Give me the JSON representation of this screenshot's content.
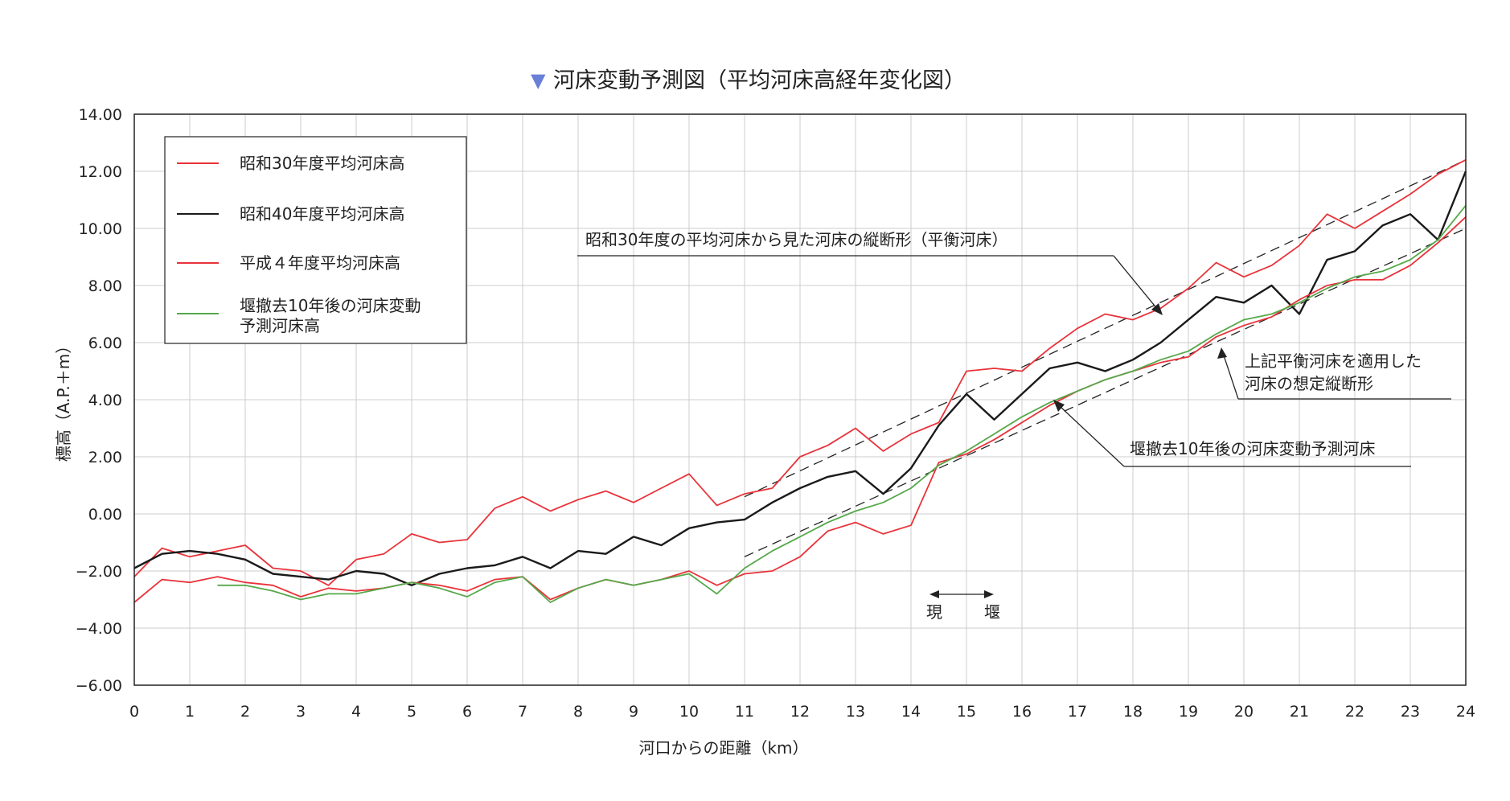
{
  "chart_data": {
    "type": "line",
    "title": "河床変動予測図（平均河床高経年変化図）",
    "title_marker": "▼",
    "xlabel": "河口からの距離（km）",
    "ylabel": "標高（A.P.＋m）",
    "xlim": [
      0,
      24
    ],
    "ylim": [
      -6,
      14
    ],
    "x_ticks": [
      "0",
      "1",
      "2",
      "3",
      "4",
      "5",
      "6",
      "7",
      "8",
      "9",
      "10",
      "11",
      "12",
      "13",
      "14",
      "15",
      "16",
      "17",
      "18",
      "19",
      "20",
      "21",
      "22",
      "23",
      "24"
    ],
    "y_ticks": [
      "14.00",
      "12.00",
      "10.00",
      "8.00",
      "6.00",
      "4.00",
      "2.00",
      "0.00",
      "−2.00",
      "−4.00",
      "−6.00"
    ],
    "grid": true,
    "legend_position": "top-left",
    "colors": {
      "red": "#e8333a",
      "black": "#1a1a1a",
      "green": "#55a84a",
      "grid": "#cccccc"
    },
    "series": [
      {
        "name": "昭和30年度平均河床高",
        "color": "#e8333a",
        "x": [
          0,
          0.5,
          1,
          1.5,
          2,
          2.5,
          3,
          3.5,
          4,
          4.5,
          5,
          5.5,
          6,
          6.5,
          7,
          7.5,
          8,
          8.5,
          9,
          9.5,
          10,
          10.5,
          11,
          11.5,
          12,
          12.5,
          13,
          13.5,
          14,
          14.5,
          15,
          15.5,
          16,
          16.5,
          17,
          17.5,
          18,
          18.5,
          19,
          19.5,
          20,
          20.5,
          21,
          21.5,
          22,
          22.5,
          23,
          23.5,
          24
        ],
        "values": [
          -2.2,
          -1.2,
          -1.5,
          -1.3,
          -1.1,
          -1.9,
          -2.0,
          -2.5,
          -1.6,
          -1.4,
          -0.7,
          -1.0,
          -0.9,
          0.2,
          0.6,
          0.1,
          0.5,
          0.8,
          0.4,
          0.9,
          1.4,
          0.3,
          0.7,
          0.9,
          2.0,
          2.4,
          3.0,
          2.2,
          2.8,
          3.2,
          5.0,
          5.1,
          5.0,
          5.8,
          6.5,
          7.0,
          6.8,
          7.2,
          7.9,
          8.8,
          8.3,
          8.7,
          9.4,
          10.5,
          10.0,
          10.6,
          11.2,
          11.9,
          12.4
        ]
      },
      {
        "name": "昭和40年度平均河床高",
        "color": "#1a1a1a",
        "x": [
          0,
          0.5,
          1,
          1.5,
          2,
          2.5,
          3,
          3.5,
          4,
          4.5,
          5,
          5.5,
          6,
          6.5,
          7,
          7.5,
          8,
          8.5,
          9,
          9.5,
          10,
          10.5,
          11,
          11.5,
          12,
          12.5,
          13,
          13.5,
          14,
          14.5,
          15,
          15.5,
          16,
          16.5,
          17,
          17.5,
          18,
          18.5,
          19,
          19.5,
          20,
          20.5,
          21,
          21.5,
          22,
          22.5,
          23,
          23.5,
          24
        ],
        "values": [
          -1.9,
          -1.4,
          -1.3,
          -1.4,
          -1.6,
          -2.1,
          -2.2,
          -2.3,
          -2.0,
          -2.1,
          -2.5,
          -2.1,
          -1.9,
          -1.8,
          -1.5,
          -1.9,
          -1.3,
          -1.4,
          -0.8,
          -1.1,
          -0.5,
          -0.3,
          -0.2,
          0.4,
          0.9,
          1.3,
          1.5,
          0.7,
          1.6,
          3.1,
          4.2,
          3.3,
          4.2,
          5.1,
          5.3,
          5.0,
          5.4,
          6.0,
          6.8,
          7.6,
          7.4,
          8.0,
          7.0,
          8.9,
          9.2,
          10.1,
          10.5,
          9.6,
          12.0
        ]
      },
      {
        "name": "平成４年度平均河床高",
        "color": "#e8333a",
        "x": [
          0,
          0.5,
          1,
          1.5,
          2,
          2.5,
          3,
          3.5,
          4,
          4.5,
          5,
          5.5,
          6,
          6.5,
          7,
          7.5,
          8,
          8.5,
          9,
          9.5,
          10,
          10.5,
          11,
          11.5,
          12,
          12.5,
          13,
          13.5,
          14,
          14.5,
          15,
          15.5,
          16,
          16.5,
          17,
          17.5,
          18,
          18.5,
          19,
          19.5,
          20,
          20.5,
          21,
          21.5,
          22,
          22.5,
          23,
          23.5,
          24
        ],
        "values": [
          -3.1,
          -2.3,
          -2.4,
          -2.2,
          -2.4,
          -2.5,
          -2.9,
          -2.6,
          -2.7,
          -2.6,
          -2.4,
          -2.5,
          -2.7,
          -2.3,
          -2.2,
          -3.0,
          -2.6,
          -2.3,
          -2.5,
          -2.3,
          -2.0,
          -2.5,
          -2.1,
          -2.0,
          -1.5,
          -0.6,
          -0.3,
          -0.7,
          -0.4,
          1.8,
          2.1,
          2.6,
          3.2,
          3.8,
          4.3,
          4.7,
          5.0,
          5.3,
          5.5,
          6.2,
          6.6,
          6.9,
          7.5,
          8.0,
          8.2,
          8.2,
          8.7,
          9.5,
          10.4
        ]
      },
      {
        "name": "堰撤去10年後の河床変動予測河床高",
        "color": "#55a84a",
        "x": [
          1.5,
          2,
          2.5,
          3,
          3.5,
          4,
          4.5,
          5,
          5.5,
          6,
          6.5,
          7,
          7.5,
          8,
          8.5,
          9,
          9.5,
          10,
          10.5,
          11,
          11.5,
          12,
          12.5,
          13,
          13.5,
          14,
          14.5,
          15,
          15.5,
          16,
          16.5,
          17,
          17.5,
          18,
          18.5,
          19,
          19.5,
          20,
          20.5,
          21,
          21.5,
          22,
          22.5,
          23,
          23.5,
          24
        ],
        "values": [
          -2.5,
          -2.5,
          -2.7,
          -3.0,
          -2.8,
          -2.8,
          -2.6,
          -2.4,
          -2.6,
          -2.9,
          -2.4,
          -2.2,
          -3.1,
          -2.6,
          -2.3,
          -2.5,
          -2.3,
          -2.1,
          -2.8,
          -1.9,
          -1.3,
          -0.8,
          -0.3,
          0.1,
          0.4,
          0.9,
          1.7,
          2.2,
          2.8,
          3.4,
          3.9,
          4.3,
          4.7,
          5.0,
          5.4,
          5.7,
          6.3,
          6.8,
          7.0,
          7.4,
          7.9,
          8.3,
          8.5,
          8.9,
          9.6,
          10.8
        ]
      }
    ],
    "reference_lines": [
      {
        "name": "昭和30年度平衡河床",
        "style": "dashed",
        "x": [
          11,
          24
        ],
        "values": [
          0.6,
          12.4
        ]
      },
      {
        "name": "想定縦断形",
        "style": "dashed",
        "x": [
          11,
          24
        ],
        "values": [
          -1.5,
          10.0
        ]
      }
    ],
    "annotations": {
      "equilibrium": "昭和30年度の平均河床から見た河床の縦断形（平衡河床）",
      "assumed_line1": "上記平衡河床を適用した",
      "assumed_line2": "河床の想定縦断形",
      "prediction": "堰撤去10年後の河床変動予測河床",
      "weir_left": "現",
      "weir_right": "堰"
    },
    "legend": {
      "entries": [
        "昭和30年度平均河床高",
        "昭和40年度平均河床高",
        "平成４年度平均河床高"
      ],
      "entry4_line1": "堰撤去10年後の河床変動",
      "entry4_line2": "予測河床高"
    }
  }
}
